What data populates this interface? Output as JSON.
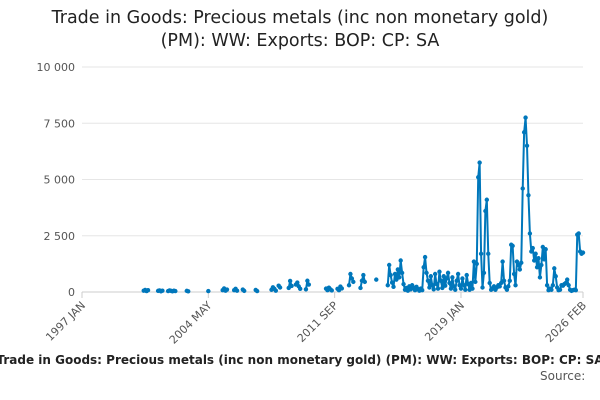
{
  "chart_data": {
    "type": "line",
    "title": "Trade in Goods: Precious metals (inc non monetary gold) (PM): WW: Exports: BOP: CP: SA",
    "title_lines": [
      "Trade in Goods: Precious metals (inc non monetary gold)",
      "(PM): WW: Exports: BOP: CP: SA"
    ],
    "source": "Source:",
    "ylim": [
      0,
      10000
    ],
    "yticks": [
      0,
      2500,
      5000,
      7500,
      10000
    ],
    "ytick_labels": [
      "0",
      "2 500",
      "5 000",
      "7 500",
      "10 000"
    ],
    "xlim": [
      "1997-01",
      "2026-02"
    ],
    "xticks": [
      "1997-01",
      "2004-05",
      "2011-09",
      "2019-01",
      "2026-02"
    ],
    "xtick_labels": [
      "1997 JAN",
      "2004 MAY",
      "2011 SEP",
      "2019 JAN",
      "2026 FEB"
    ],
    "grid": true,
    "legend_position": "bottom",
    "series": [
      {
        "name": "Trade in Goods: Precious metals (inc non monetary gold) (PM): WW: Exports: BOP: CP: SA",
        "color": "#0077bb",
        "points": [
          [
            "2000-08",
            60
          ],
          [
            "2000-09",
            90
          ],
          [
            "2000-10",
            40
          ],
          [
            "2000-11",
            80
          ],
          [
            "2001-06",
            50
          ],
          [
            "2001-07",
            70
          ],
          [
            "2001-08",
            30
          ],
          [
            "2001-09",
            60
          ],
          [
            "2002-01",
            40
          ],
          [
            "2002-02",
            70
          ],
          [
            "2002-03",
            50
          ],
          [
            "2002-04",
            30
          ],
          [
            "2002-05",
            60
          ],
          [
            "2002-06",
            40
          ],
          [
            "2003-02",
            50
          ],
          [
            "2003-03",
            30
          ],
          [
            "2004-05",
            40
          ],
          [
            "2005-03",
            80
          ],
          [
            "2005-04",
            160
          ],
          [
            "2005-05",
            60
          ],
          [
            "2005-06",
            110
          ],
          [
            "2005-11",
            80
          ],
          [
            "2005-12",
            140
          ],
          [
            "2006-01",
            60
          ],
          [
            "2006-05",
            110
          ],
          [
            "2006-06",
            50
          ],
          [
            "2007-02",
            90
          ],
          [
            "2007-03",
            40
          ],
          [
            "2008-01",
            100
          ],
          [
            "2008-02",
            210
          ],
          [
            "2008-03",
            140
          ],
          [
            "2008-04",
            60
          ],
          [
            "2008-06",
            280
          ],
          [
            "2008-07",
            200
          ],
          [
            "2009-01",
            180
          ],
          [
            "2009-02",
            490
          ],
          [
            "2009-03",
            270
          ],
          [
            "2009-06",
            330
          ],
          [
            "2009-07",
            420
          ],
          [
            "2009-08",
            250
          ],
          [
            "2009-09",
            140
          ],
          [
            "2010-01",
            120
          ],
          [
            "2010-02",
            500
          ],
          [
            "2010-03",
            330
          ],
          [
            "2011-03",
            150
          ],
          [
            "2011-04",
            80
          ],
          [
            "2011-05",
            190
          ],
          [
            "2011-06",
            120
          ],
          [
            "2011-07",
            70
          ],
          [
            "2011-11",
            140
          ],
          [
            "2011-12",
            80
          ],
          [
            "2012-01",
            240
          ],
          [
            "2012-02",
            160
          ],
          [
            "2012-07",
            300
          ],
          [
            "2012-08",
            800
          ],
          [
            "2012-09",
            600
          ],
          [
            "2012-10",
            450
          ],
          [
            "2013-03",
            180
          ],
          [
            "2013-04",
            500
          ],
          [
            "2013-05",
            750
          ],
          [
            "2013-06",
            450
          ],
          [
            "2014-02",
            550
          ],
          [
            "2014-10",
            300
          ],
          [
            "2014-11",
            1200
          ],
          [
            "2014-12",
            750
          ],
          [
            "2015-01",
            420
          ],
          [
            "2015-02",
            230
          ],
          [
            "2015-03",
            800
          ],
          [
            "2015-04",
            550
          ],
          [
            "2015-05",
            1000
          ],
          [
            "2015-06",
            650
          ],
          [
            "2015-07",
            1400
          ],
          [
            "2015-08",
            850
          ],
          [
            "2015-09",
            350
          ],
          [
            "2015-10",
            100
          ],
          [
            "2015-11",
            180
          ],
          [
            "2015-12",
            60
          ],
          [
            "2016-01",
            250
          ],
          [
            "2016-02",
            120
          ],
          [
            "2016-03",
            300
          ],
          [
            "2016-04",
            180
          ],
          [
            "2016-05",
            80
          ],
          [
            "2016-06",
            230
          ],
          [
            "2016-07",
            130
          ],
          [
            "2016-08",
            60
          ],
          [
            "2016-09",
            150
          ],
          [
            "2016-10",
            80
          ],
          [
            "2016-11",
            1100
          ],
          [
            "2016-12",
            1550
          ],
          [
            "2017-01",
            850
          ],
          [
            "2017-02",
            500
          ],
          [
            "2017-03",
            200
          ],
          [
            "2017-04",
            700
          ],
          [
            "2017-05",
            300
          ],
          [
            "2017-06",
            120
          ],
          [
            "2017-07",
            800
          ],
          [
            "2017-08",
            350
          ],
          [
            "2017-09",
            150
          ],
          [
            "2017-10",
            900
          ],
          [
            "2017-11",
            500
          ],
          [
            "2017-12",
            180
          ],
          [
            "2018-01",
            700
          ],
          [
            "2018-02",
            280
          ],
          [
            "2018-03",
            600
          ],
          [
            "2018-04",
            850
          ],
          [
            "2018-05",
            400
          ],
          [
            "2018-06",
            150
          ],
          [
            "2018-07",
            650
          ],
          [
            "2018-08",
            250
          ],
          [
            "2018-09",
            100
          ],
          [
            "2018-10",
            500
          ],
          [
            "2018-11",
            800
          ],
          [
            "2018-12",
            300
          ],
          [
            "2019-01",
            150
          ],
          [
            "2019-02",
            600
          ],
          [
            "2019-03",
            300
          ],
          [
            "2019-04",
            100
          ],
          [
            "2019-05",
            750
          ],
          [
            "2019-06",
            350
          ],
          [
            "2019-07",
            100
          ],
          [
            "2019-08",
            400
          ],
          [
            "2019-09",
            150
          ],
          [
            "2019-10",
            1350
          ],
          [
            "2019-11",
            450
          ],
          [
            "2019-12",
            1250
          ],
          [
            "2020-01",
            5100
          ],
          [
            "2020-02",
            5750
          ],
          [
            "2020-03",
            1700
          ],
          [
            "2020-04",
            200
          ],
          [
            "2020-05",
            850
          ],
          [
            "2020-06",
            3600
          ],
          [
            "2020-07",
            4100
          ],
          [
            "2020-08",
            1700
          ],
          [
            "2020-09",
            400
          ],
          [
            "2020-10",
            100
          ],
          [
            "2020-11",
            150
          ],
          [
            "2020-12",
            250
          ],
          [
            "2021-01",
            100
          ],
          [
            "2021-02",
            200
          ],
          [
            "2021-03",
            300
          ],
          [
            "2021-04",
            250
          ],
          [
            "2021-05",
            400
          ],
          [
            "2021-06",
            1350
          ],
          [
            "2021-07",
            500
          ],
          [
            "2021-08",
            200
          ],
          [
            "2021-09",
            100
          ],
          [
            "2021-10",
            250
          ],
          [
            "2021-11",
            500
          ],
          [
            "2021-12",
            2100
          ],
          [
            "2022-01",
            2050
          ],
          [
            "2022-02",
            800
          ],
          [
            "2022-03",
            300
          ],
          [
            "2022-04",
            1350
          ],
          [
            "2022-05",
            1200
          ],
          [
            "2022-06",
            1000
          ],
          [
            "2022-07",
            1300
          ],
          [
            "2022-08",
            4600
          ],
          [
            "2022-09",
            7100
          ],
          [
            "2022-10",
            7750
          ],
          [
            "2022-11",
            6500
          ],
          [
            "2022-12",
            4300
          ],
          [
            "2023-01",
            2600
          ],
          [
            "2023-02",
            1800
          ],
          [
            "2023-03",
            1950
          ],
          [
            "2023-04",
            1400
          ],
          [
            "2023-05",
            1700
          ],
          [
            "2023-06",
            1100
          ],
          [
            "2023-07",
            1500
          ],
          [
            "2023-08",
            650
          ],
          [
            "2023-09",
            1200
          ],
          [
            "2023-10",
            2000
          ],
          [
            "2023-11",
            1450
          ],
          [
            "2023-12",
            1900
          ],
          [
            "2024-01",
            300
          ],
          [
            "2024-02",
            80
          ],
          [
            "2024-03",
            150
          ],
          [
            "2024-04",
            100
          ],
          [
            "2024-05",
            300
          ],
          [
            "2024-06",
            1050
          ],
          [
            "2024-07",
            700
          ],
          [
            "2024-08",
            200
          ],
          [
            "2024-09",
            80
          ],
          [
            "2024-10",
            100
          ],
          [
            "2024-11",
            300
          ],
          [
            "2024-12",
            280
          ],
          [
            "2025-01",
            350
          ],
          [
            "2025-02",
            400
          ],
          [
            "2025-03",
            550
          ],
          [
            "2025-04",
            300
          ],
          [
            "2025-05",
            100
          ],
          [
            "2025-06",
            50
          ],
          [
            "2025-07",
            80
          ],
          [
            "2025-08",
            100
          ],
          [
            "2025-09",
            80
          ],
          [
            "2025-10",
            2550
          ],
          [
            "2025-11",
            2600
          ],
          [
            "2025-12",
            1800
          ],
          [
            "2026-01",
            1700
          ],
          [
            "2026-02",
            1750
          ]
        ]
      }
    ]
  }
}
